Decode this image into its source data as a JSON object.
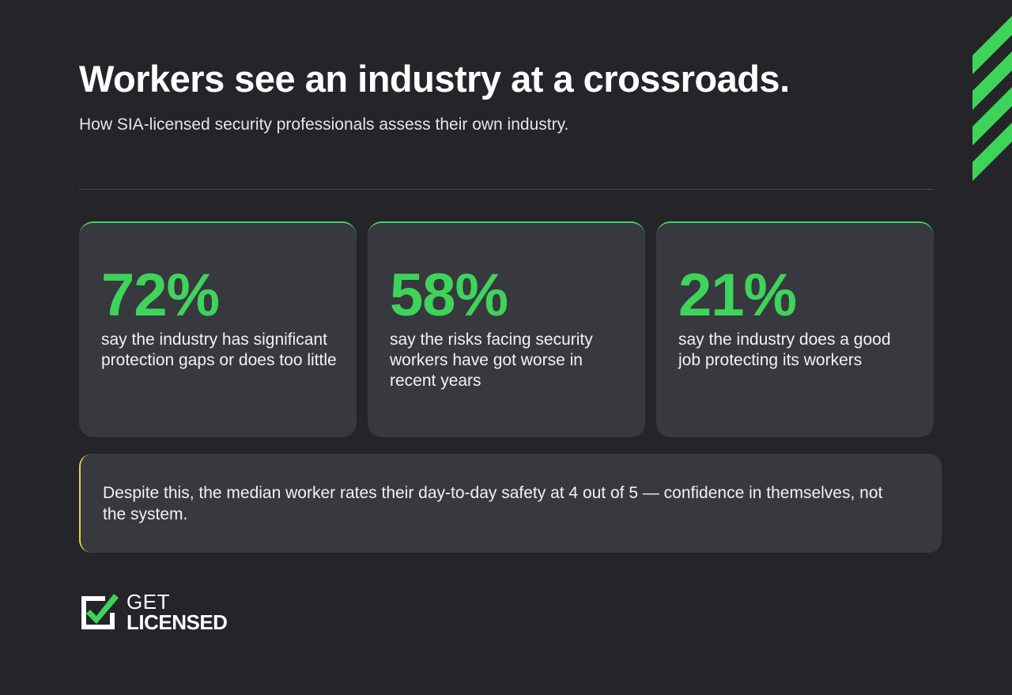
{
  "header": {
    "title": "Workers see an industry at a crossroads.",
    "subtitle": "How SIA-licensed security professionals assess their own industry."
  },
  "stats": [
    {
      "value": "72%",
      "description": "say the industry has significant protection gaps or does too little"
    },
    {
      "value": "58%",
      "description": "say the risks facing security workers have got worse in recent years"
    },
    {
      "value": "21%",
      "description": "say the industry does a good job protecting its workers"
    }
  ],
  "note": {
    "text": "Despite this, the median worker rates their day-to-day safety at 4 out of 5 — confidence in themselves, not the system."
  },
  "logo": {
    "line1": "GET",
    "line2": "LICENSED",
    "icon": "checkbox-checked-icon"
  },
  "colors": {
    "background": "#242429",
    "card": "#38383f",
    "accent_green": "#3ed45a",
    "accent_yellow": "#e8d23a"
  }
}
